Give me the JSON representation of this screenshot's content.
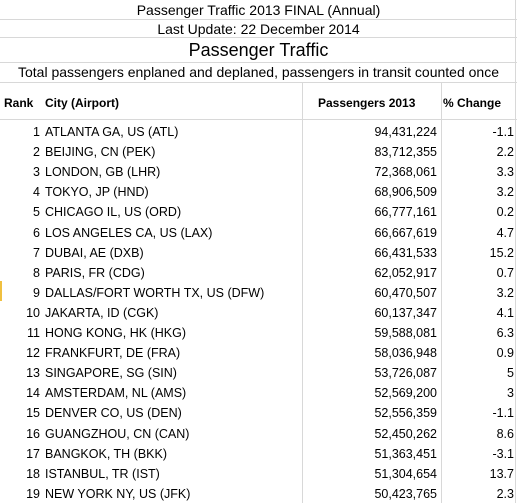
{
  "titles": {
    "line1": "Passenger Traffic 2013 FINAL (Annual)",
    "line2": "Last Update: 22 December 2014",
    "line3": "Passenger Traffic",
    "line4": "Total passengers enplaned and deplaned, passengers in transit counted once"
  },
  "columns": {
    "rank": "Rank",
    "city": "City (Airport)",
    "passengers": "Passengers 2013",
    "change": "% Change"
  },
  "rows": [
    {
      "rank": "1",
      "city": "ATLANTA GA, US (ATL)",
      "passengers": "94,431,224",
      "change": "-1.1"
    },
    {
      "rank": "2",
      "city": "BEIJING, CN (PEK)",
      "passengers": "83,712,355",
      "change": "2.2"
    },
    {
      "rank": "3",
      "city": "LONDON, GB (LHR)",
      "passengers": "72,368,061",
      "change": "3.3"
    },
    {
      "rank": "4",
      "city": "TOKYO, JP (HND)",
      "passengers": "68,906,509",
      "change": "3.2"
    },
    {
      "rank": "5",
      "city": "CHICAGO IL, US (ORD)",
      "passengers": "66,777,161",
      "change": "0.2"
    },
    {
      "rank": "6",
      "city": "LOS ANGELES CA, US (LAX)",
      "passengers": "66,667,619",
      "change": "4.7"
    },
    {
      "rank": "7",
      "city": "DUBAI, AE (DXB)",
      "passengers": "66,431,533",
      "change": "15.2"
    },
    {
      "rank": "8",
      "city": "PARIS, FR (CDG)",
      "passengers": "62,052,917",
      "change": "0.7"
    },
    {
      "rank": "9",
      "city": "DALLAS/FORT WORTH TX, US (DFW)",
      "passengers": "60,470,507",
      "change": "3.2"
    },
    {
      "rank": "10",
      "city": "JAKARTA, ID (CGK)",
      "passengers": "60,137,347",
      "change": "4.1"
    },
    {
      "rank": "11",
      "city": "HONG KONG, HK (HKG)",
      "passengers": "59,588,081",
      "change": "6.3"
    },
    {
      "rank": "12",
      "city": "FRANKFURT, DE (FRA)",
      "passengers": "58,036,948",
      "change": "0.9"
    },
    {
      "rank": "13",
      "city": "SINGAPORE, SG (SIN)",
      "passengers": "53,726,087",
      "change": "5"
    },
    {
      "rank": "14",
      "city": "AMSTERDAM, NL (AMS)",
      "passengers": "52,569,200",
      "change": "3"
    },
    {
      "rank": "15",
      "city": "DENVER CO, US (DEN)",
      "passengers": "52,556,359",
      "change": "-1.1"
    },
    {
      "rank": "16",
      "city": "GUANGZHOU, CN (CAN)",
      "passengers": "52,450,262",
      "change": "8.6"
    },
    {
      "rank": "17",
      "city": "BANGKOK, TH (BKK)",
      "passengers": "51,363,451",
      "change": "-3.1"
    },
    {
      "rank": "18",
      "city": "ISTANBUL, TR (IST)",
      "passengers": "51,304,654",
      "change": "13.7"
    },
    {
      "rank": "19",
      "city": "NEW YORK NY, US (JFK)",
      "passengers": "50,423,765",
      "change": "2.3"
    }
  ]
}
